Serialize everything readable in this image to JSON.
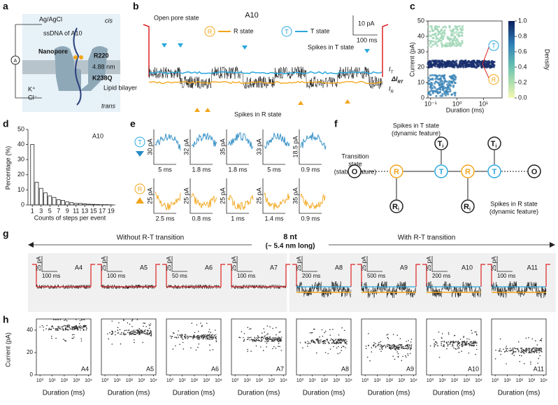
{
  "panel_a": {
    "label": "a",
    "electrode": "Ag/AgCl",
    "cis": "cis",
    "ssdna": "ssDNA of A10",
    "nanopore": "Nanopore",
    "residue_1": "R220",
    "width": "4.88 nm",
    "residue_2": "K238Q",
    "bilayer": "Lipid bilayer",
    "ion_1": "K⁺",
    "ion_2": "Cl⁻",
    "trans": "trans",
    "meter": "A"
  },
  "panel_b": {
    "label": "b",
    "title": "A10",
    "open_pore": "Open pore state",
    "r_symbol": "R",
    "r_state": "R state",
    "t_symbol": "T",
    "t_state": "T state",
    "y_scale": "10 pA",
    "x_scale": "100 ms",
    "spikes_t": "Spikes in T state",
    "spikes_r": "Spikes in R state",
    "i_t": "I",
    "i_t_sub": "T",
    "delta": "ΔI",
    "delta_sub": "RT",
    "i_r": "I",
    "i_r_sub": "R"
  },
  "panel_c": {
    "label": "c",
    "y_label": "Current (pA)",
    "ylim": [
      0,
      50
    ],
    "yticks": [
      0,
      10,
      20,
      30,
      40,
      50
    ],
    "x_label": "Duration (ms)",
    "xlim": [
      -1.1,
      1.7
    ],
    "xticks": [
      {
        "value": -1,
        "label": "10⁻¹"
      },
      {
        "value": 0,
        "label": "10⁰"
      },
      {
        "value": 1,
        "label": "10¹"
      }
    ],
    "colorbar_label": "Density",
    "colorbar_ticks": [
      {
        "value": 0,
        "label": "0.0"
      },
      {
        "value": 0.2,
        "label": "0.2"
      },
      {
        "value": 0.4,
        "label": "0.4"
      },
      {
        "value": 0.6,
        "label": "0.6"
      },
      {
        "value": 0.8,
        "label": "0.8"
      },
      {
        "value": 1,
        "label": "1.0"
      }
    ],
    "t_symbol": "T",
    "r_symbol": "R"
  },
  "panel_d": {
    "label": "d",
    "title": "A10",
    "y_label": "Percentage (%)",
    "x_label": "Counts of steps per event",
    "ylim": [
      0,
      50
    ],
    "yticks": [
      0,
      10,
      20,
      30,
      40,
      50
    ],
    "xlim": [
      0,
      20
    ],
    "xticks": [
      1,
      3,
      5,
      7,
      9,
      11,
      13,
      15,
      17,
      19
    ],
    "x": [
      1,
      2,
      3,
      4,
      5,
      6,
      7,
      8,
      9,
      10,
      11,
      12,
      13,
      14,
      15,
      16,
      17,
      18,
      19
    ],
    "values": [
      40,
      15,
      11,
      8,
      6,
      5,
      3.5,
      3,
      2,
      1.5,
      1,
      1,
      0.7,
      0.5,
      0.4,
      0.3,
      0.2,
      0.2,
      0.1
    ]
  },
  "panel_e": {
    "label": "e",
    "t_symbol": "T",
    "r_symbol": "R",
    "top": [
      {
        "y": "30 pA",
        "x": "5 ms"
      },
      {
        "y": "32 pA",
        "x": "1.8 ms"
      },
      {
        "y": "35 pA",
        "x": "1.8 ms"
      },
      {
        "y": "33 pA",
        "x": "5 ms"
      },
      {
        "y": "18.5 pA",
        "x": "0.9 ms"
      }
    ],
    "bottom": [
      {
        "y": "25 pA",
        "x": "2.5 ms"
      },
      {
        "y": "25 pA",
        "x": "0.8 ms"
      },
      {
        "y": "25 pA",
        "x": "1 ms"
      },
      {
        "y": "25 pA",
        "x": "1.4 ms"
      },
      {
        "y": "35 pA",
        "x": "0.9 ms"
      }
    ]
  },
  "panel_f": {
    "label": "f",
    "transition": [
      "Transition",
      "state",
      "(stable feature)"
    ],
    "spikes_t": [
      "Spikes in T state",
      "(dynamic feature)"
    ],
    "spikes_r": [
      "Spikes in R state",
      "(dynamic feature)"
    ],
    "nodes": [
      "O",
      "R",
      "T",
      "R",
      "T",
      "O"
    ],
    "spike_t": "T",
    "spike_r": "R",
    "sub": "i"
  },
  "panel_g": {
    "label": "g",
    "left": "Without R-T transition",
    "center": "8 nt",
    "center_sub": "(~ 5.4 nm long)",
    "right": "With R-T transition",
    "panels": [
      {
        "name": "A4",
        "y_scale": "25 pA",
        "x_scale": "100 ms"
      },
      {
        "name": "A5",
        "y_scale": "25 pA",
        "x_scale": "100 ms"
      },
      {
        "name": "A6",
        "y_scale": "25 pA",
        "x_scale": "50 ms"
      },
      {
        "name": "A7",
        "y_scale": "25 pA",
        "x_scale": "100 ms"
      },
      {
        "name": "A8",
        "y_scale": "25 pA",
        "x_scale": "200 ms"
      },
      {
        "name": "A9",
        "y_scale": "25 pA",
        "x_scale": "500 ms"
      },
      {
        "name": "A10",
        "y_scale": "25 pA",
        "x_scale": "200 ms"
      },
      {
        "name": "A11",
        "y_scale": "25 pA",
        "x_scale": "100 ms"
      }
    ]
  },
  "panel_h": {
    "label": "h",
    "y_label": "Current (pA)",
    "ylim": [
      0,
      50
    ],
    "yticks": [
      0,
      20,
      40
    ],
    "x_label": "Duration (ms)",
    "xlim": [
      -0.3,
      4.2
    ],
    "xticks": [
      {
        "value": 0,
        "label": "10⁰"
      },
      {
        "value": 1,
        "label": "10¹"
      },
      {
        "value": 2,
        "label": "10²"
      },
      {
        "value": 3,
        "label": "10³"
      },
      {
        "value": 4,
        "label": "10⁴"
      }
    ]
  }
}
